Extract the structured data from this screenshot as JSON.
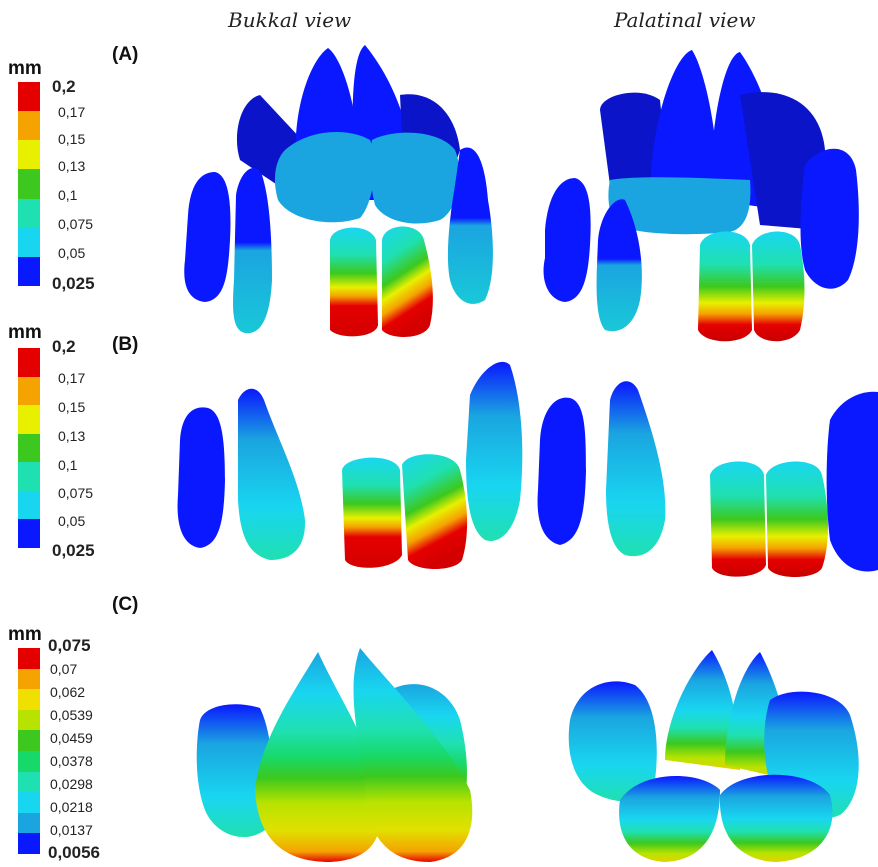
{
  "headers": {
    "left": "Bukkal view",
    "right": "Palatinal view"
  },
  "colors": {
    "red": "#e50000",
    "orange": "#f5a300",
    "yellow": "#e8f000",
    "ygreen": "#b8e300",
    "green": "#3cc81e",
    "green2": "#17d96a",
    "teal": "#1fe0b0",
    "cyan": "#19d6f0",
    "lightblue": "#1aa5e0",
    "blue": "#0a18ff",
    "deepblue": "#0b14c8"
  },
  "panels": [
    {
      "label": "(A)",
      "legend": {
        "unit": "mm",
        "max": "0,2",
        "min": "0,025",
        "ticks": [
          "0,17",
          "0,15",
          "0,13",
          "0,1",
          "0,075",
          "0,05"
        ],
        "colors": [
          "#e50000",
          "#f5a300",
          "#e8f000",
          "#3cc81e",
          "#1fe0b0",
          "#19d6f0",
          "#0a18ff"
        ]
      }
    },
    {
      "label": "(B)",
      "legend": {
        "unit": "mm",
        "max": "0,2",
        "min": "0,025",
        "ticks": [
          "0,17",
          "0,15",
          "0,13",
          "0,1",
          "0,075",
          "0,05"
        ],
        "colors": [
          "#e50000",
          "#f5a300",
          "#e8f000",
          "#3cc81e",
          "#1fe0b0",
          "#19d6f0",
          "#0a18ff"
        ]
      }
    },
    {
      "label": "(C)",
      "legend": {
        "unit": "mm",
        "max": "0,075",
        "min": "0,0056",
        "ticks": [
          "0,07",
          "0,062",
          "0,0539",
          "0,0459",
          "0,0378",
          "0,0298",
          "0,0218",
          "0,0137"
        ],
        "colors": [
          "#e50000",
          "#f5a300",
          "#f0e000",
          "#b8e300",
          "#3cc81e",
          "#17d96a",
          "#1fe0b0",
          "#19d6f0",
          "#1aa5e0",
          "#0a18ff"
        ]
      }
    }
  ]
}
